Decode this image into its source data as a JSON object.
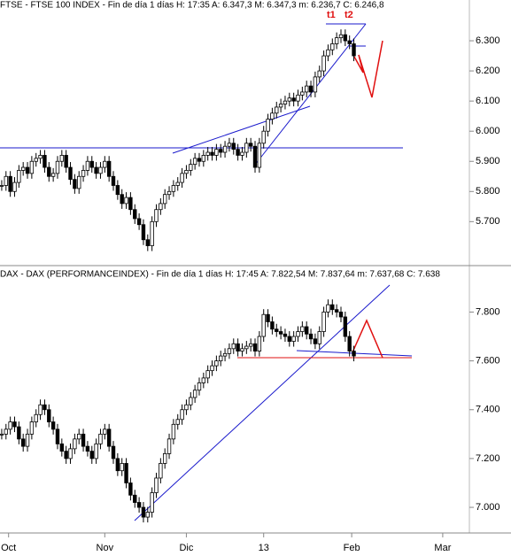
{
  "chart_data": [
    {
      "type": "candlestick",
      "title": "FTSE - FTSE 100 INDEX - Fin de día 1 días H: 17:35 A: 6.347,3 M: 6.347,3 m: 6.236,7 C: 6.246,8",
      "annotations": [
        "t1",
        "t2"
      ],
      "color": "#000000",
      "values": [
        5820,
        5850,
        5800,
        5830,
        5870,
        5880,
        5860,
        5900,
        5910,
        5920,
        5880,
        5850,
        5860,
        5900,
        5920,
        5880,
        5840,
        5810,
        5850,
        5870,
        5900,
        5880,
        5860,
        5880,
        5900,
        5850,
        5820,
        5790,
        5760,
        5780,
        5740,
        5710,
        5690,
        5640,
        5620,
        5700,
        5740,
        5760,
        5790,
        5800,
        5820,
        5830,
        5860,
        5870,
        5890,
        5910,
        5900,
        5920,
        5930,
        5920,
        5940,
        5930,
        5950,
        5960,
        5940,
        5920,
        5930,
        5960,
        5950,
        5880,
        5960,
        6000,
        6040,
        6060,
        6080,
        6090,
        6100,
        6110,
        6100,
        6120,
        6130,
        6150,
        6130,
        6180,
        6200,
        6250,
        6270,
        6290,
        6310,
        6320,
        6300,
        6290,
        6250
      ],
      "xlim": [
        -0.4,
        118.6
      ],
      "ylim": [
        5560,
        6400
      ],
      "yticks": [
        {
          "value": 5700,
          "label": "5.700"
        },
        {
          "value": 5800,
          "label": "5.800"
        },
        {
          "value": 5900,
          "label": "5.900"
        },
        {
          "value": 6000,
          "label": "6.000"
        },
        {
          "value": 6100,
          "label": "6.100"
        },
        {
          "value": 6200,
          "label": "6.200"
        },
        {
          "value": 6300,
          "label": "6.300"
        }
      ]
    },
    {
      "type": "candlestick",
      "title": "DAX - DAX (PERFORMANCEINDEX) - Fin de día 1 días H: 17:45 A: 7.822,54 M: 7.837,64 m: 7.637,68 C: 7.638",
      "color": "#000000",
      "values": [
        7300,
        7320,
        7350,
        7330,
        7280,
        7250,
        7300,
        7350,
        7380,
        7420,
        7400,
        7350,
        7320,
        7260,
        7230,
        7200,
        7240,
        7280,
        7300,
        7250,
        7230,
        7200,
        7260,
        7300,
        7320,
        7250,
        7200,
        7150,
        7180,
        7100,
        7050,
        7020,
        7000,
        6960,
        6980,
        7060,
        7120,
        7180,
        7220,
        7280,
        7340,
        7360,
        7400,
        7420,
        7450,
        7480,
        7510,
        7530,
        7560,
        7580,
        7600,
        7620,
        7630,
        7650,
        7670,
        7640,
        7650,
        7660,
        7670,
        7640,
        7700,
        7790,
        7760,
        7730,
        7720,
        7710,
        7700,
        7680,
        7700,
        7720,
        7740,
        7710,
        7690,
        7670,
        7720,
        7800,
        7830,
        7810,
        7800,
        7780,
        7700,
        7640,
        7620
      ],
      "xlim": [
        -0.4,
        118.6
      ],
      "ylim": [
        6895,
        7925
      ],
      "yticks": [
        {
          "value": 7000,
          "label": "7.000"
        },
        {
          "value": 7200,
          "label": "7.200"
        },
        {
          "value": 7400,
          "label": "7.400"
        },
        {
          "value": 7600,
          "label": "7.600"
        },
        {
          "value": 7800,
          "label": "7.800"
        }
      ],
      "xticks": [
        {
          "value": 1.6,
          "label": "Oct"
        },
        {
          "value": 24,
          "label": "Nov"
        },
        {
          "value": 43,
          "label": "Dic"
        },
        {
          "value": 61,
          "label": "13"
        },
        {
          "value": 81.5,
          "label": "Feb"
        },
        {
          "value": 102.7,
          "label": "Mar"
        }
      ]
    }
  ]
}
